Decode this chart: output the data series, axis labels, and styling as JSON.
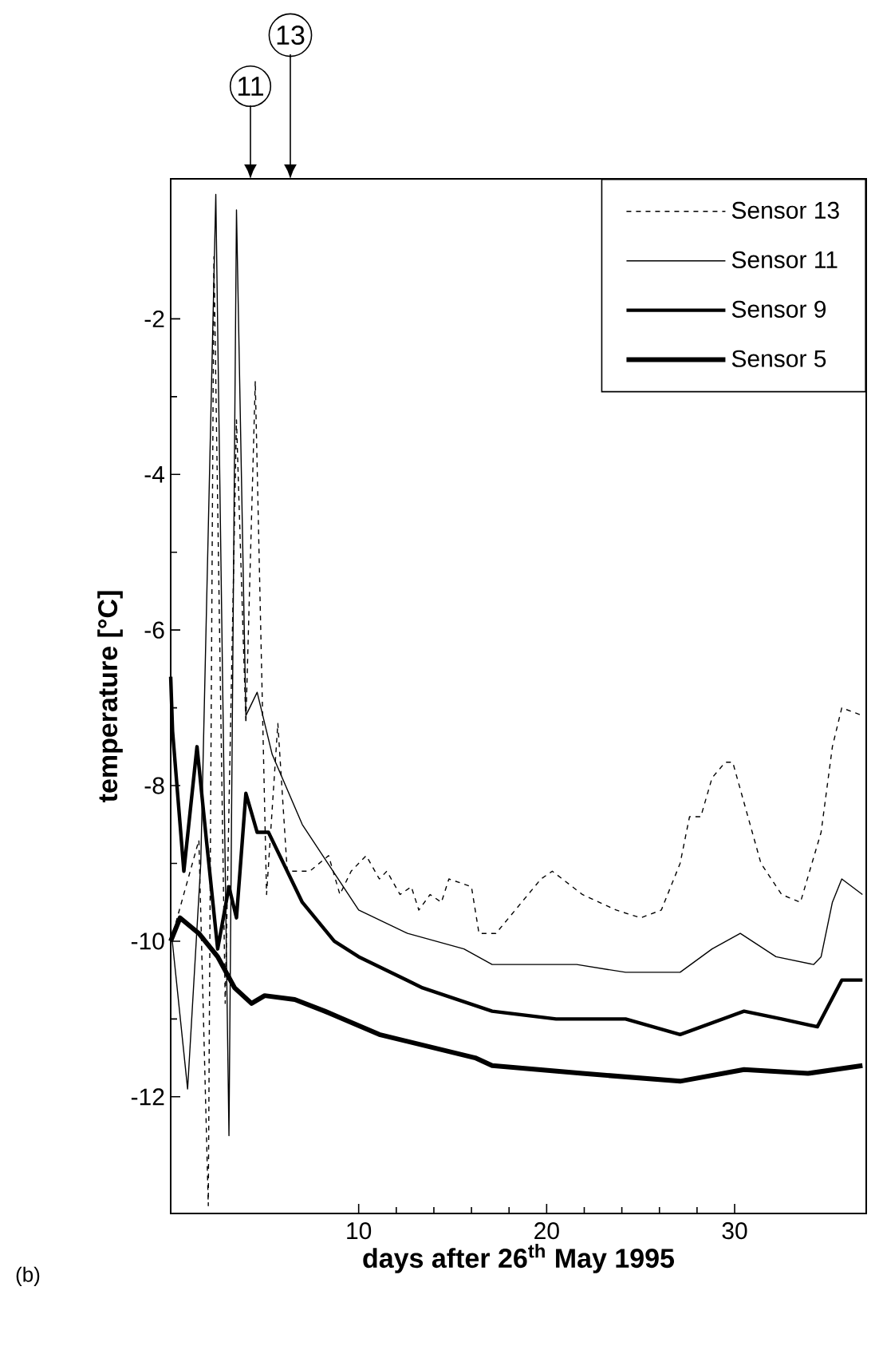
{
  "chart_data": {
    "type": "line",
    "xlabel": "days after 26$^{th}$ May 1995",
    "ylabel": "temperature [°C]",
    "xlim": [
      0,
      37
    ],
    "ylim": [
      -13.5,
      -0.2
    ],
    "xticks": [
      10,
      20,
      30
    ],
    "yticks": [
      -12,
      -10,
      -8,
      -6,
      -4,
      -2
    ],
    "legend": "top right",
    "series": [
      {
        "name": "Sensor 13",
        "color": "#000000",
        "line_style": "dashed",
        "x": [
          0,
          1.5,
          2.0,
          2.3,
          2.9,
          3.5,
          4.0,
          4.5,
          5.1,
          5.7,
          6.2,
          7.4,
          8.4,
          9.0,
          9.6,
          10.4,
          11.1,
          11.5,
          12.2,
          12.8,
          13.2,
          13.8,
          14.4,
          14.8,
          16.0,
          16.4,
          17.3,
          19.7,
          20.3,
          21.9,
          23.7,
          25.0,
          26.1,
          27.1,
          27.6,
          28.2,
          28.8,
          29.5,
          29.9,
          31.4,
          32.5,
          33.5,
          34.6,
          35.2,
          35.7,
          36.8
        ],
        "values": [
          -10.0,
          -8.7,
          -13.4,
          -1.2,
          -10.8,
          -3.3,
          -7.2,
          -2.8,
          -9.4,
          -7.2,
          -9.1,
          -9.1,
          -8.9,
          -9.4,
          -9.1,
          -8.9,
          -9.2,
          -9.1,
          -9.4,
          -9.3,
          -9.6,
          -9.4,
          -9.5,
          -9.2,
          -9.3,
          -9.9,
          -9.9,
          -9.2,
          -9.1,
          -9.4,
          -9.6,
          -9.7,
          -9.6,
          -9.0,
          -8.4,
          -8.4,
          -7.9,
          -7.7,
          -7.7,
          -9.0,
          -9.4,
          -9.5,
          -8.6,
          -7.5,
          -7.0,
          -7.1
        ]
      },
      {
        "name": "Sensor 11",
        "color": "#000000",
        "line_style": "solid",
        "x": [
          0,
          0.9,
          1.6,
          2.4,
          3.1,
          3.5,
          4.0,
          4.6,
          5.4,
          7.0,
          10.0,
          12.6,
          15.6,
          17.1,
          18.5,
          21.6,
          24.2,
          25.4,
          27.1,
          28.8,
          30.3,
          32.2,
          34.2,
          34.6,
          35.2,
          35.7,
          36.8
        ],
        "values": [
          -9.8,
          -11.9,
          -9.0,
          -0.4,
          -12.5,
          -0.6,
          -7.1,
          -6.8,
          -7.6,
          -8.5,
          -9.6,
          -9.9,
          -10.1,
          -10.3,
          -10.3,
          -10.3,
          -10.4,
          -10.4,
          -10.4,
          -10.1,
          -9.9,
          -10.2,
          -10.3,
          -10.2,
          -9.5,
          -9.2,
          -9.4
        ]
      },
      {
        "name": "Sensor 9",
        "color": "#000000",
        "line_style": "solid",
        "x": [
          0,
          0.1,
          0.7,
          1.4,
          1.9,
          2.5,
          3.1,
          3.5,
          4.0,
          4.6,
          5.2,
          7.0,
          8.7,
          10.0,
          13.4,
          17.1,
          20.5,
          24.2,
          27.1,
          30.5,
          32.5,
          34.4,
          35.7,
          36.8
        ],
        "values": [
          -6.6,
          -7.3,
          -9.1,
          -7.5,
          -8.7,
          -10.1,
          -9.3,
          -9.7,
          -8.1,
          -8.6,
          -8.6,
          -9.5,
          -10.0,
          -10.2,
          -10.6,
          -10.9,
          -11.0,
          -11.0,
          -11.2,
          -10.9,
          -11.0,
          -11.1,
          -10.5,
          -10.5
        ]
      },
      {
        "name": "Sensor 5",
        "color": "#000000",
        "line_style": "solid",
        "x": [
          0,
          0.5,
          1.5,
          2.5,
          3.4,
          4.3,
          5.0,
          6.6,
          8.2,
          11.1,
          16.2,
          17.1,
          21.9,
          27.1,
          30.5,
          33.9,
          36.8
        ],
        "values": [
          -10.0,
          -9.7,
          -9.9,
          -10.2,
          -10.6,
          -10.8,
          -10.7,
          -10.75,
          -10.9,
          -11.2,
          -11.5,
          -11.6,
          -11.7,
          -11.8,
          -11.65,
          -11.7,
          -11.6
        ]
      }
    ],
    "annotations": [
      "11",
      "13",
      "(b)"
    ]
  }
}
